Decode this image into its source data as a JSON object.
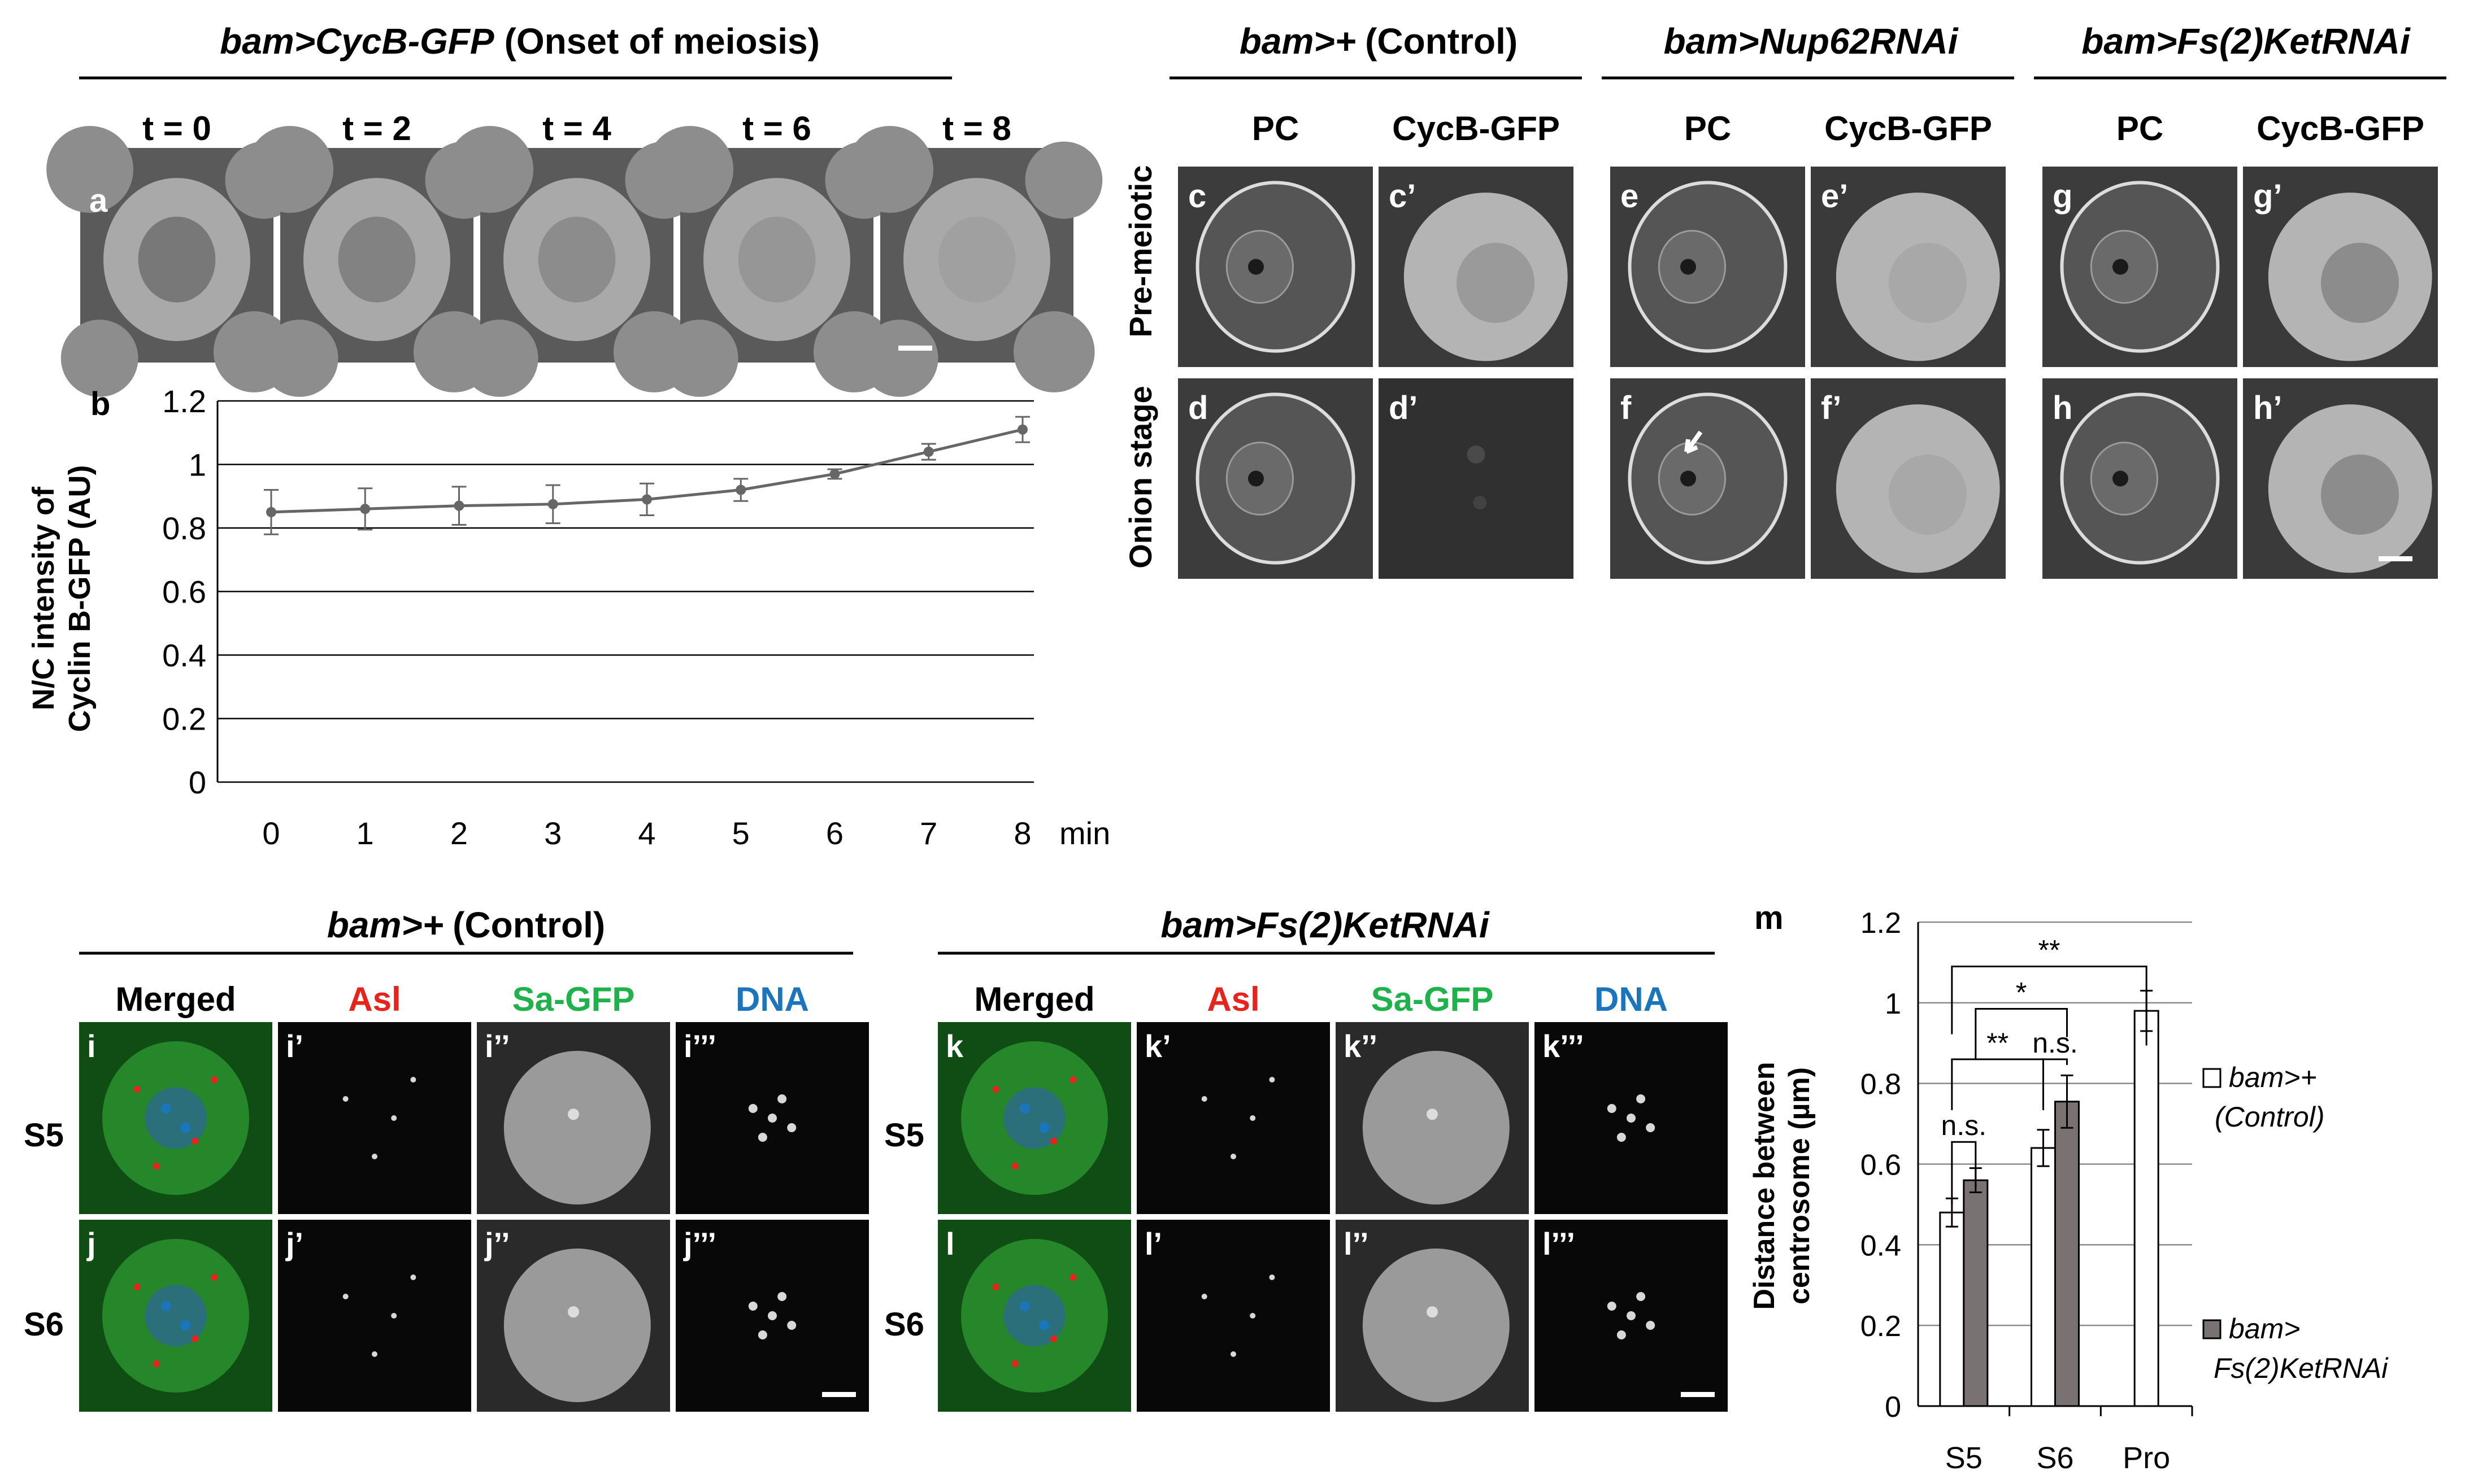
{
  "top_left": {
    "title_genotype": "bam>CycB-GFP",
    "title_suffix": "(Onset of meiosis)",
    "time_labels": [
      "t = 0",
      "t = 2",
      "t = 4",
      "t = 6",
      "t = 8"
    ],
    "panel_letter_a": "a",
    "panel_letter_b": "b"
  },
  "top_right": {
    "groups": [
      {
        "genotype": "bam>+",
        "suffix": "(Control)"
      },
      {
        "genotype": "bam>Nup62RNAi",
        "suffix": ""
      },
      {
        "genotype": "bam>Fs(2)KetRNAi",
        "suffix": ""
      }
    ],
    "col_pc": "PC",
    "col_gfp": "CycB-GFP",
    "row_labels": [
      "Pre-meiotic",
      "Onion stage"
    ],
    "panel_letters": [
      [
        "c",
        "c’",
        "e",
        "e’",
        "g",
        "g’"
      ],
      [
        "d",
        "d’",
        "f",
        "f’",
        "h",
        "h’"
      ]
    ]
  },
  "bottom_left": {
    "groups": [
      {
        "genotype": "bam>+",
        "suffix": "(Control)"
      },
      {
        "genotype": "bam>Fs(2)KetRNAi",
        "suffix": ""
      }
    ],
    "channels": [
      "Merged",
      "Asl",
      "Sa-GFP",
      "DNA"
    ],
    "channel_colors": [
      "#000000",
      "#e8231b",
      "#1fb24a",
      "#1b75bc"
    ],
    "row_labels": [
      "S5",
      "S6"
    ],
    "panel_letters": [
      [
        "i",
        "i’",
        "i’’",
        "i’’’",
        "k",
        "k’",
        "k’’",
        "k’’’"
      ],
      [
        "j",
        "j’",
        "j’’",
        "j’’’",
        "l",
        "l’",
        "l’’",
        "l’’’"
      ]
    ]
  },
  "chart_b_labels": {
    "ylabel_line1": "N/C intensity of",
    "ylabel_line2": "Cyclin B-GFP (AU)",
    "x_unit": "min"
  },
  "chart_m_labels": {
    "panel_letter": "m",
    "ylabel_line1": "Distance between",
    "ylabel_line2": "centrosome  (µm)",
    "legend": [
      {
        "line1": "bam>+",
        "line2": "(Control)"
      },
      {
        "line1": "bam>",
        "line2": "Fs(2)KetRNAi"
      }
    ],
    "significance": [
      "**",
      "*",
      "**",
      "n.s.",
      "n.s."
    ]
  },
  "chart_data": [
    {
      "type": "line",
      "x": [
        0,
        1,
        2,
        3,
        4,
        5,
        6,
        7,
        8
      ],
      "series": [
        {
          "values": [
            0.85,
            0.86,
            0.87,
            0.875,
            0.89,
            0.92,
            0.97,
            1.04,
            1.11
          ],
          "errors": [
            0.07,
            0.065,
            0.06,
            0.06,
            0.05,
            0.035,
            0.015,
            0.025,
            0.04
          ]
        }
      ],
      "ylim": [
        0,
        1.2
      ],
      "yticks": [
        "0",
        "0.2",
        "0.4",
        "0.6",
        "0.8",
        "1",
        "1.2"
      ],
      "xticks": [
        "0",
        "1",
        "2",
        "3",
        "4",
        "5",
        "6",
        "7",
        "8"
      ],
      "grid": true,
      "color": "#666666"
    },
    {
      "type": "bar",
      "categories": [
        "S5",
        "S6",
        "Pro"
      ],
      "series": [
        {
          "name": "bam>+ (Control)",
          "values": [
            0.48,
            0.64,
            0.98
          ],
          "errors": [
            0.035,
            0.045,
            0.05
          ],
          "color": "#ffffff"
        },
        {
          "name": "bam> Fs(2)KetRNAi",
          "values": [
            0.56,
            0.755,
            null
          ],
          "errors": [
            0.03,
            0.065,
            null
          ],
          "color": "#7a7272"
        }
      ],
      "ylim": [
        0,
        1.2
      ],
      "yticks": [
        "0",
        "0.2",
        "0.4",
        "0.6",
        "0.8",
        "1",
        "1.2"
      ],
      "grid": true,
      "legend_position": "right"
    }
  ]
}
